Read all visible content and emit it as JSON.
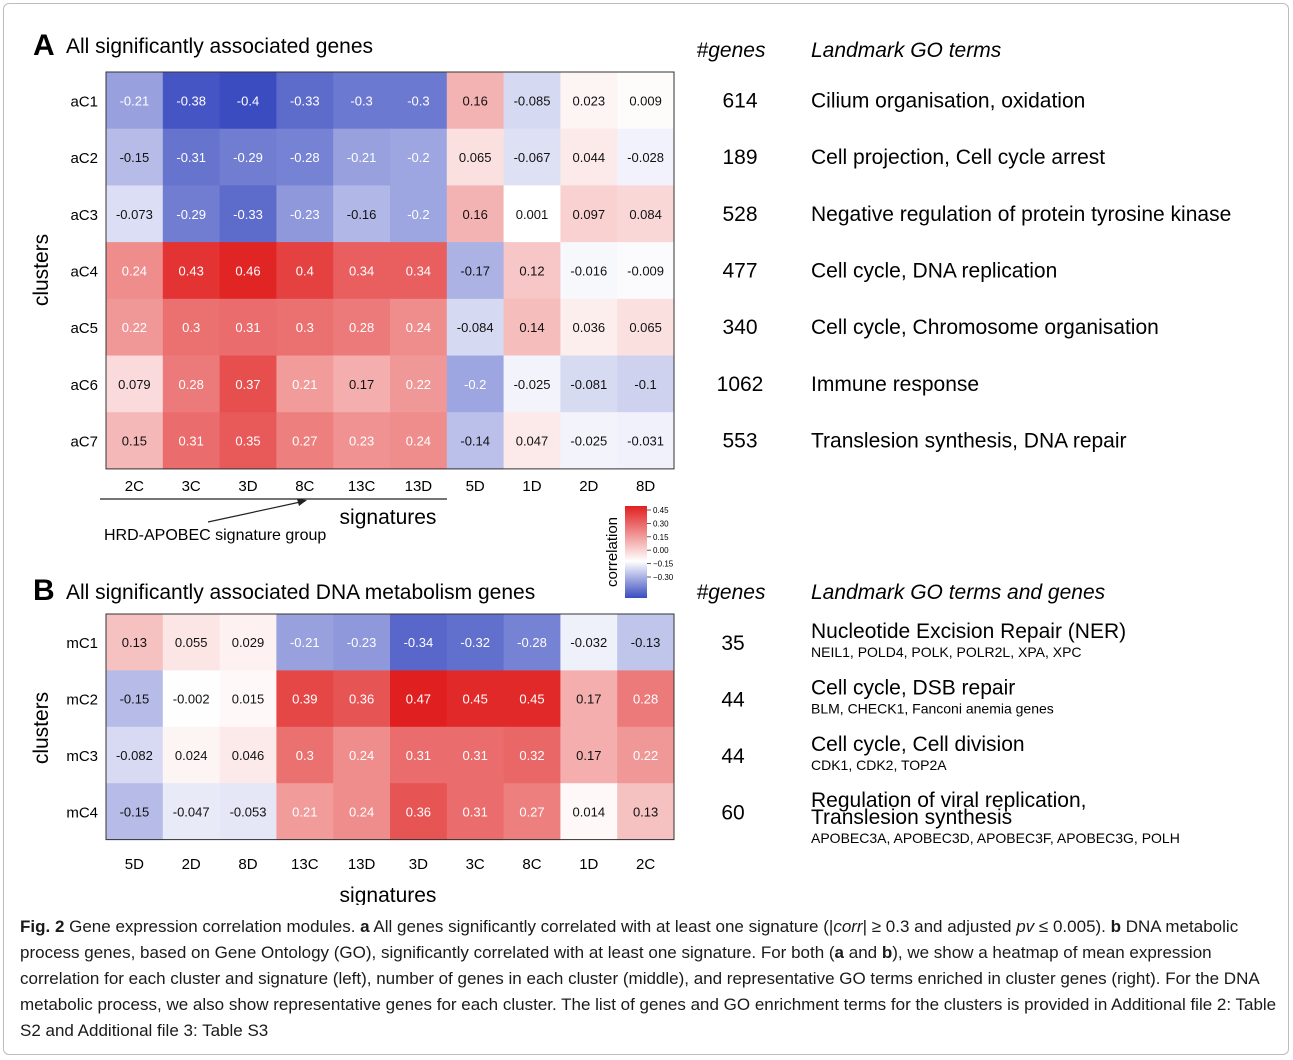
{
  "panel_a": {
    "letter": "A",
    "title": "All significantly associated genes",
    "row_axis_label": "clusters",
    "col_axis_label": "signatures",
    "group_label": "HRD-APOBEC signature group",
    "genes_header": "#genes",
    "terms_header": "Landmark GO terms"
  },
  "panel_b": {
    "letter": "B",
    "title": "All significantly associated DNA metabolism genes",
    "row_axis_label": "clusters",
    "col_axis_label": "signatures",
    "genes_header": "#genes",
    "terms_header": "Landmark GO terms and genes"
  },
  "legend": {
    "title": "correlation",
    "ticks": [
      "0.45",
      "0.30",
      "0.15",
      "0.00",
      "−0.15",
      "−0.30"
    ],
    "colors": {
      "low": "#3b4cc0",
      "mid": "#ffffff",
      "high": "#e02020"
    }
  },
  "chart_data": [
    {
      "type": "heatmap",
      "title": "All significantly associated genes",
      "xlabel": "signatures",
      "ylabel": "clusters",
      "columns": [
        "2C",
        "3C",
        "3D",
        "8C",
        "13C",
        "13D",
        "5D",
        "1D",
        "2D",
        "8D"
      ],
      "rows": [
        "aC1",
        "aC2",
        "aC3",
        "aC4",
        "aC5",
        "aC6",
        "aC7"
      ],
      "values": [
        [
          "-0.21",
          "-0.38",
          "-0.4",
          "-0.33",
          "-0.3",
          "-0.3",
          "0.16",
          "-0.085",
          "0.023",
          "0.009"
        ],
        [
          "-0.15",
          "-0.31",
          "-0.29",
          "-0.28",
          "-0.21",
          "-0.2",
          "0.065",
          "-0.067",
          "0.044",
          "-0.028"
        ],
        [
          "-0.073",
          "-0.29",
          "-0.33",
          "-0.23",
          "-0.16",
          "-0.2",
          "0.16",
          "0.001",
          "0.097",
          "0.084"
        ],
        [
          "0.24",
          "0.43",
          "0.46",
          "0.4",
          "0.34",
          "0.34",
          "-0.17",
          "0.12",
          "-0.016",
          "-0.009"
        ],
        [
          "0.22",
          "0.3",
          "0.31",
          "0.3",
          "0.28",
          "0.24",
          "-0.084",
          "0.14",
          "0.036",
          "0.065"
        ],
        [
          "0.079",
          "0.28",
          "0.37",
          "0.21",
          "0.17",
          "0.22",
          "-0.2",
          "-0.025",
          "-0.081",
          "-0.1"
        ],
        [
          "0.15",
          "0.31",
          "0.35",
          "0.27",
          "0.23",
          "0.24",
          "-0.14",
          "0.047",
          "-0.025",
          "-0.031"
        ]
      ],
      "genes": [
        "614",
        "189",
        "528",
        "477",
        "340",
        "1062",
        "553"
      ],
      "terms": [
        "Cilium organisation, oxidation",
        "Cell projection, Cell cycle arrest",
        "Negative regulation of protein tyrosine kinase",
        "Cell cycle, DNA replication",
        "Cell cycle, Chromosome organisation",
        "Immune response",
        "Translesion synthesis, DNA repair"
      ]
    },
    {
      "type": "heatmap",
      "title": "All significantly associated DNA metabolism genes",
      "xlabel": "signatures",
      "ylabel": "clusters",
      "columns": [
        "5D",
        "2D",
        "8D",
        "13C",
        "13D",
        "3D",
        "3C",
        "8C",
        "1D",
        "2C"
      ],
      "rows": [
        "mC1",
        "mC2",
        "mC3",
        "mC4"
      ],
      "values": [
        [
          "0.13",
          "0.055",
          "0.029",
          "-0.21",
          "-0.23",
          "-0.34",
          "-0.32",
          "-0.28",
          "-0.032",
          "-0.13"
        ],
        [
          "-0.15",
          "-0.002",
          "0.015",
          "0.39",
          "0.36",
          "0.47",
          "0.45",
          "0.45",
          "0.17",
          "0.28"
        ],
        [
          "-0.082",
          "0.024",
          "0.046",
          "0.3",
          "0.24",
          "0.31",
          "0.31",
          "0.32",
          "0.17",
          "0.22"
        ],
        [
          "-0.15",
          "-0.047",
          "-0.053",
          "0.21",
          "0.24",
          "0.36",
          "0.31",
          "0.27",
          "0.014",
          "0.13"
        ]
      ],
      "genes": [
        "35",
        "44",
        "44",
        "60"
      ],
      "terms": [
        [
          "Nucleotide Excision Repair (NER)"
        ],
        [
          "Cell cycle, DSB repair"
        ],
        [
          "Cell cycle, Cell division"
        ],
        [
          "Regulation of viral replication,",
          "Translesion synthesis"
        ]
      ],
      "gene_lists": [
        "NEIL1, POLD4, POLK, POLR2L, XPA, XPC",
        "BLM, CHECK1, Fanconi anemia genes",
        "CDK1, CDK2, TOP2A",
        "APOBEC3A, APOBEC3D, APOBEC3F, APOBEC3G, POLH"
      ]
    }
  ],
  "caption": {
    "fig_label": "Fig. 2",
    "t1": " Gene expression correlation modules. ",
    "a": "a",
    "t2": " All genes significantly correlated with at least one signature (|",
    "corr": "corr",
    "t3": "| ≥ 0.3 and adjusted ",
    "pv": "pv",
    "t4": " ≤ 0.005). ",
    "b": "b",
    "t5": " DNA metabolic process genes, based on Gene Ontology (GO), significantly correlated with at least one signature. For both (",
    "a2": "a",
    "t6": " and ",
    "b2": "b",
    "t7": "), we show a heatmap of mean expression correlation for each cluster and signature (left), number of genes in each cluster (middle), and representative GO terms enriched in cluster genes (right). For the DNA metabolic process, we also show representative genes for each cluster. The list of genes and GO enrichment terms for the clusters is provided in Additional file 2: Table S2 and Additional file 3: Table S3"
  }
}
